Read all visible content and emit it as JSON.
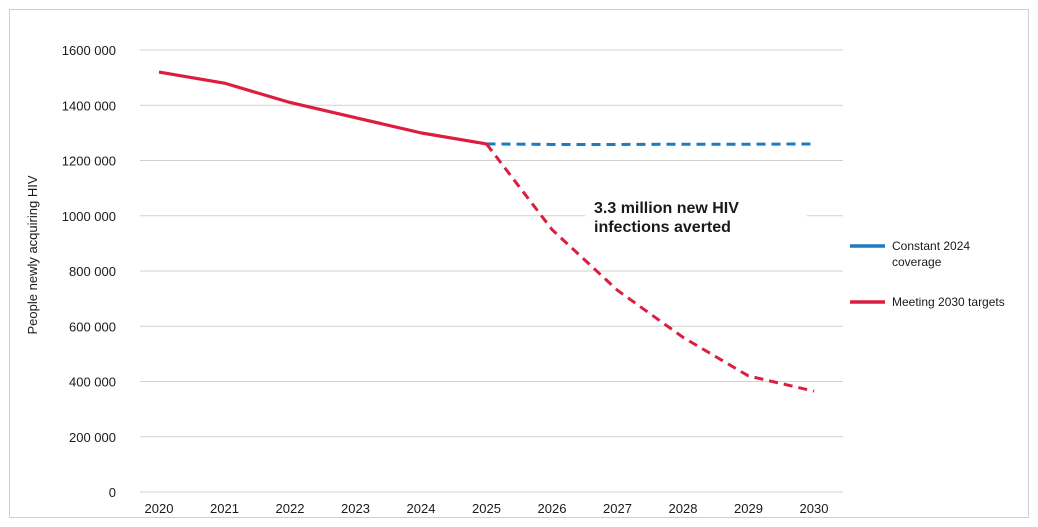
{
  "chart_data": {
    "type": "line",
    "title": "",
    "xlabel": "",
    "ylabel": "People newly acquiring HIV",
    "ylim": [
      0,
      1600000
    ],
    "yticks": [
      0,
      200000,
      400000,
      600000,
      800000,
      1000000,
      1200000,
      1400000,
      1600000
    ],
    "ytick_labels": [
      "0",
      "200 000",
      "400 000",
      "600 000",
      "800 000",
      "1000 000",
      "1200 000",
      "1400 000",
      "1600 000"
    ],
    "x": [
      "2020",
      "2021",
      "2022",
      "2023",
      "2024",
      "2025",
      "2026",
      "2027",
      "2028",
      "2029",
      "2030"
    ],
    "grid": "horizontal",
    "legend_position": "right",
    "series": [
      {
        "name": "Constant 2024 coverage",
        "color": "#1a7dc2",
        "style": "dashed",
        "values": [
          null,
          null,
          null,
          null,
          null,
          1260000,
          1258000,
          1258000,
          1259000,
          1259000,
          1260000
        ]
      },
      {
        "name": "Meeting 2030 targets",
        "color": "#dc1d3f",
        "style": "solid-then-dashed",
        "solid_until": "2025",
        "values": [
          1520000,
          1480000,
          1410000,
          1355000,
          1300000,
          1260000,
          950000,
          730000,
          560000,
          420000,
          365000
        ]
      }
    ],
    "annotations": [
      {
        "text_lines": [
          "3.3 million new HIV",
          "infections averted"
        ],
        "x": "2027",
        "y": 1000000
      }
    ]
  }
}
